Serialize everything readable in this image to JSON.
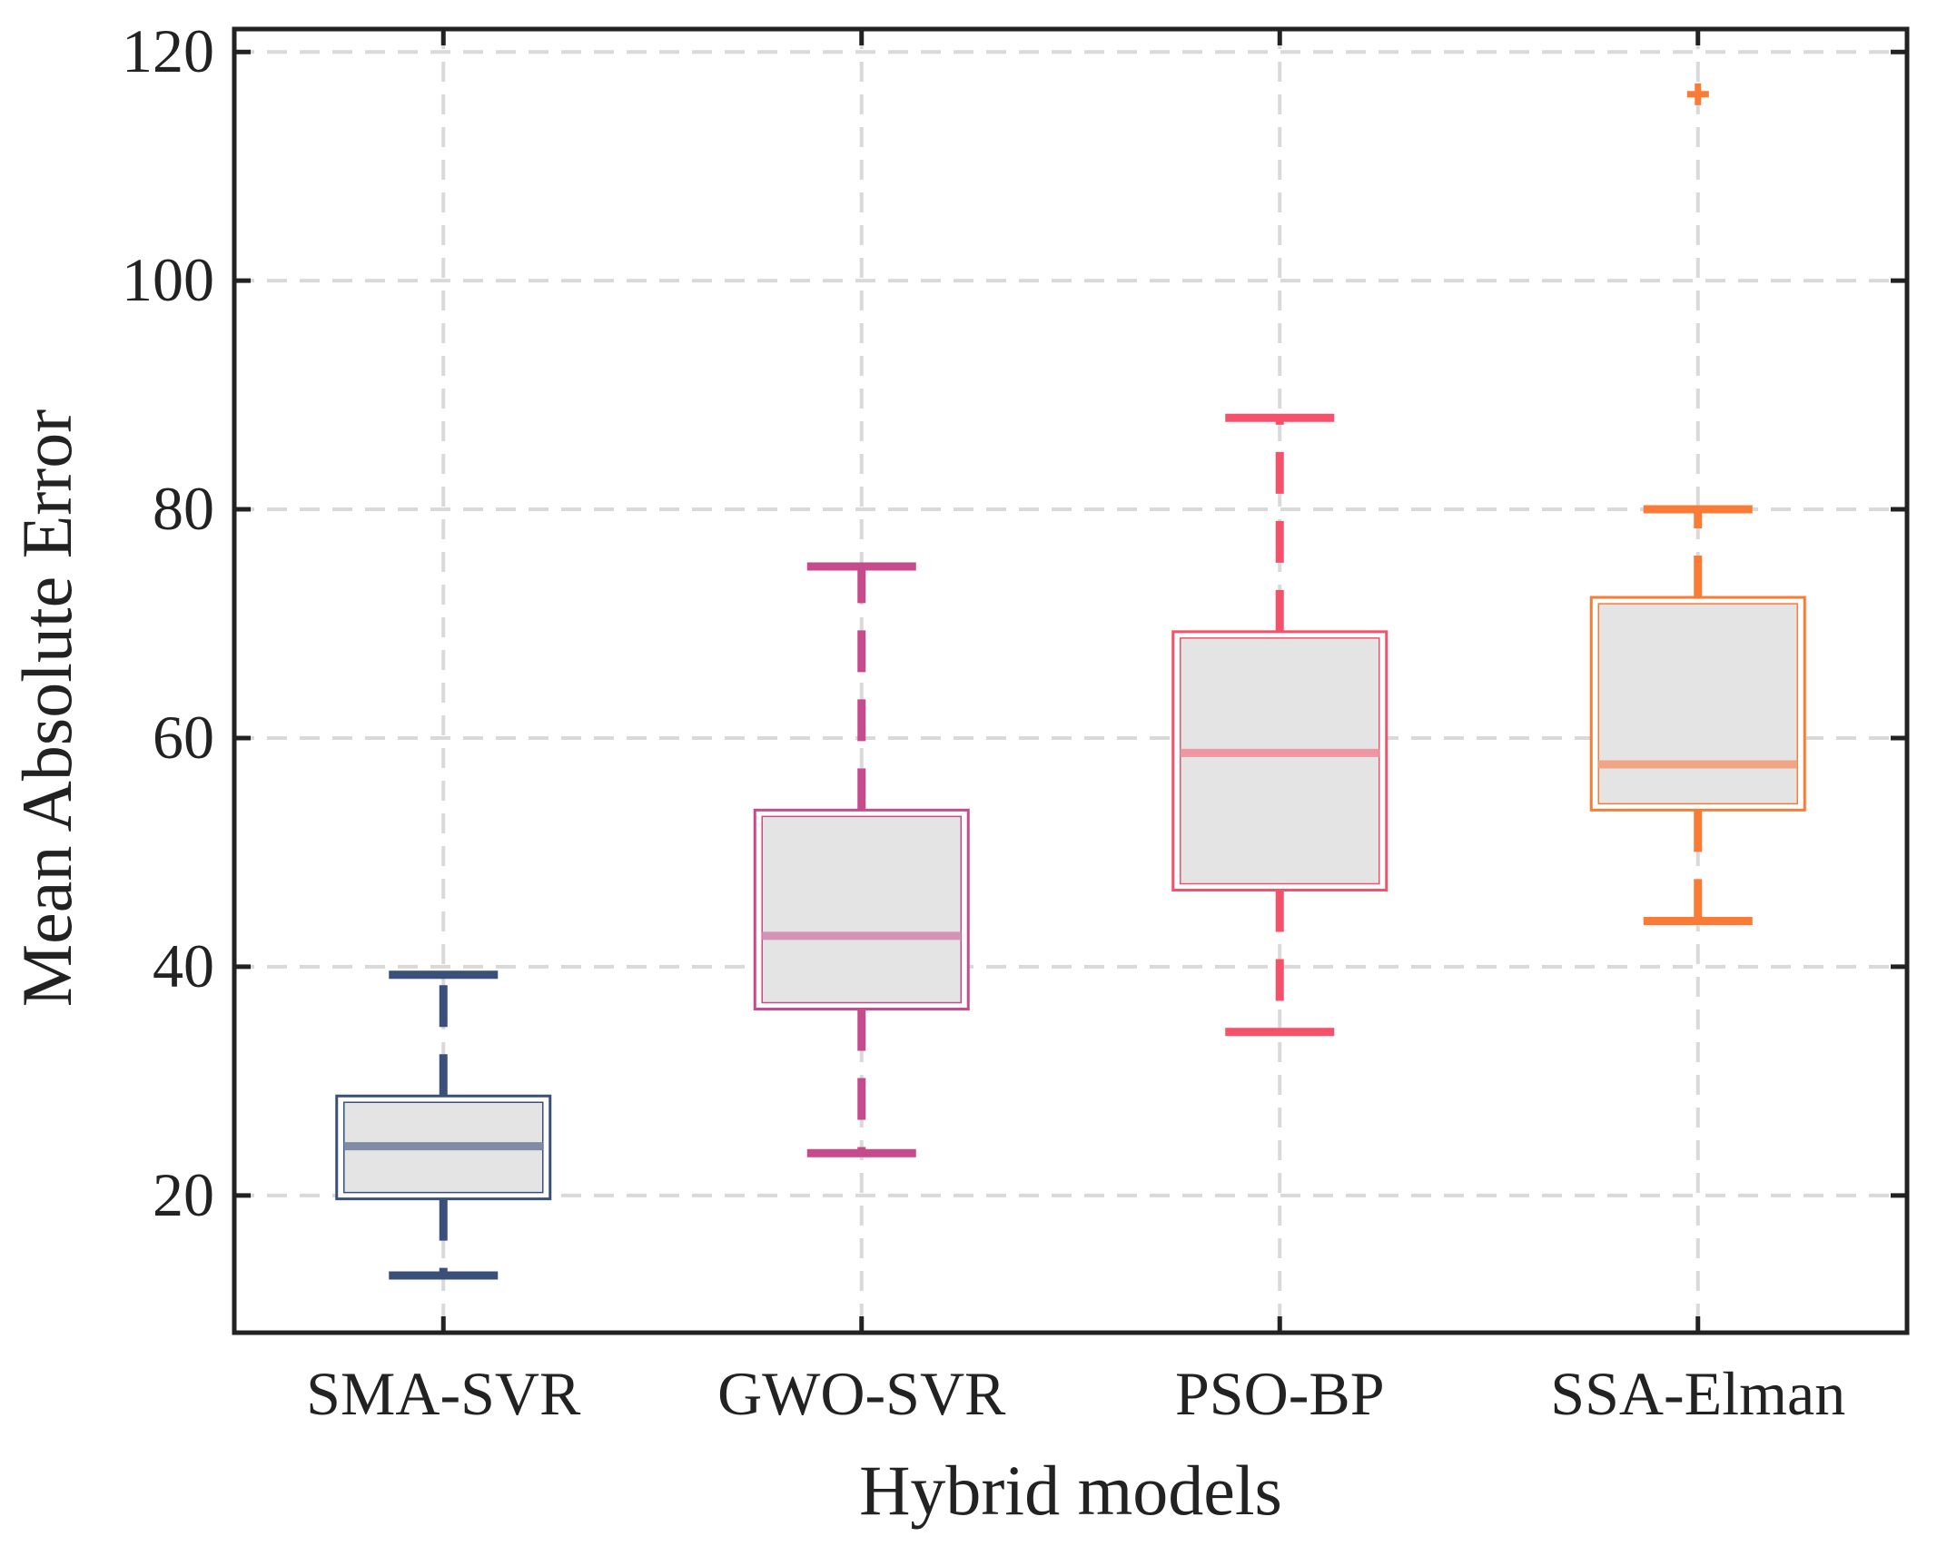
{
  "chart_data": {
    "type": "boxplot",
    "title": "",
    "xlabel": "Hybrid models",
    "ylabel": "Mean Absolute Error",
    "ylim": [
      8,
      122
    ],
    "yticks": [
      20,
      40,
      60,
      80,
      100,
      120
    ],
    "grid": true,
    "categories": [
      "SMA-SVR",
      "GWO-SVR",
      "PSO-BP",
      "SSA-Elman"
    ],
    "boxes": [
      {
        "category": "SMA-SVR",
        "whisker_low": 13.0,
        "q1": 19.7,
        "median": 24.3,
        "q3": 28.7,
        "whisker_high": 39.3,
        "outliers": [],
        "color": "#3a4f7a",
        "median_color": "#7f8ca4"
      },
      {
        "category": "GWO-SVR",
        "whisker_low": 23.7,
        "q1": 36.3,
        "median": 42.7,
        "q3": 53.7,
        "whisker_high": 75.0,
        "outliers": [],
        "color": "#c64b8c",
        "median_color": "#d393b5"
      },
      {
        "category": "PSO-BP",
        "whisker_low": 34.3,
        "q1": 46.7,
        "median": 58.7,
        "q3": 69.3,
        "whisker_high": 88.0,
        "outliers": [],
        "color": "#f5516b",
        "median_color": "#ee97a3"
      },
      {
        "category": "SSA-Elman",
        "whisker_low": 44.0,
        "q1": 53.7,
        "median": 57.7,
        "q3": 72.3,
        "whisker_high": 80.0,
        "outliers": [
          116.3
        ],
        "color": "#f97b35",
        "median_color": "#f0a685"
      }
    ],
    "box_fill": "#e4e4e4",
    "grid_color": "#d9d9d9",
    "axis_color": "#222222"
  }
}
